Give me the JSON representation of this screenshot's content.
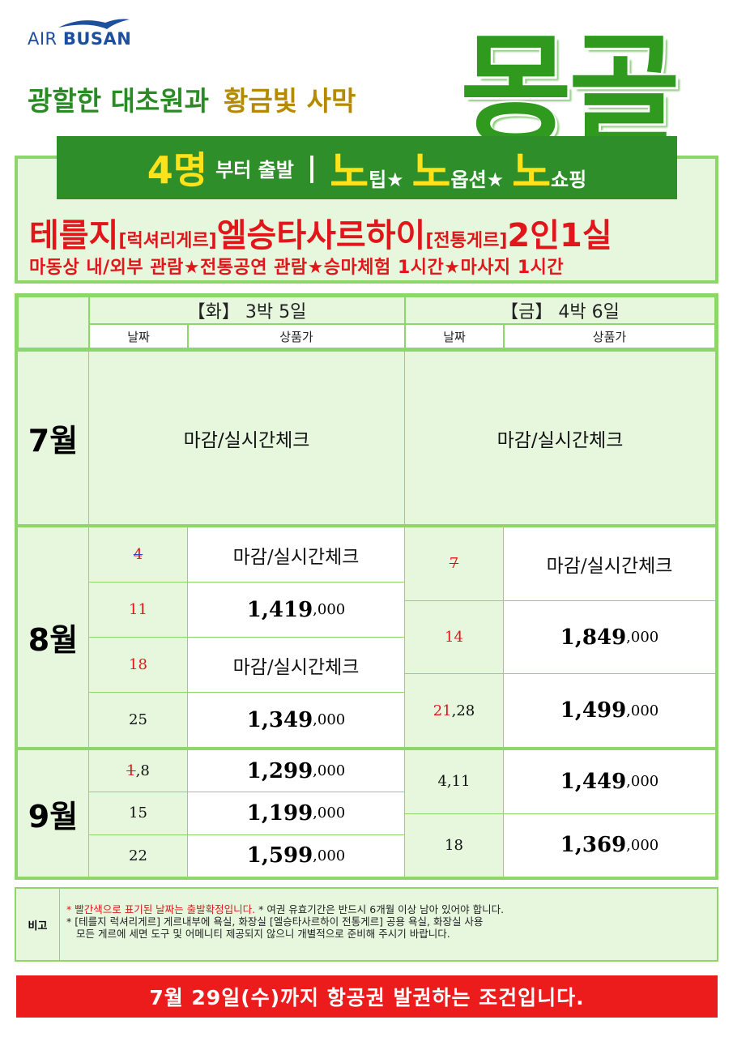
{
  "logo": {
    "air": "AIR",
    "busan": "BUSAN"
  },
  "headline": {
    "green": "광할한 대초원과",
    "gold": "황금빛 사막",
    "title": "몽골"
  },
  "banner": {
    "lead": "4명",
    "lead_suffix": "부터 출발",
    "divider": "|",
    "features": [
      {
        "big": "노",
        "small": "팁★"
      },
      {
        "big": "노",
        "small": "옵션★"
      },
      {
        "big": "노",
        "small": "쇼핑"
      }
    ]
  },
  "hotel_line": [
    "테를지",
    "[럭셔리게르]",
    "엘승타사르하이",
    "[전통게르]",
    "2인1실"
  ],
  "features_line": "마동상 내/외부 관람★전통공연 관람★승마체험 1시간★마사지 1시간",
  "table": {
    "header": {
      "tue": "【화】 3박 5일",
      "fri": "【금】 4박 6일",
      "sub": [
        "날짜",
        "상품가",
        "날짜",
        "상품가"
      ]
    },
    "months": [
      {
        "label": "7월",
        "tue": [
          {
            "note": "마감/실시간체크"
          }
        ],
        "fri": [
          {
            "note": "마감/실시간체크"
          }
        ]
      },
      {
        "label": "8월",
        "tue": [
          {
            "date": [
              {
                "t": "4",
                "s": "struck"
              }
            ],
            "note": "마감/실시간체크"
          },
          {
            "date": [
              {
                "t": "11",
                "s": "red"
              }
            ],
            "price": [
              "1,419",
              ",000"
            ]
          },
          {
            "date": [
              {
                "t": "18",
                "s": "red"
              }
            ],
            "note": "마감/실시간체크"
          },
          {
            "date": [
              {
                "t": "25",
                "s": "plain"
              }
            ],
            "price": [
              "1,349",
              ",000"
            ]
          }
        ],
        "fri": [
          {
            "date": [
              {
                "t": "7",
                "s": "struck"
              }
            ],
            "note": "마감/실시간체크"
          },
          {
            "date": [
              {
                "t": "14",
                "s": "red"
              }
            ],
            "price": [
              "1,849",
              ",000"
            ]
          },
          {
            "date": [
              {
                "t": "21",
                "s": "red"
              },
              {
                "t": ",28",
                "s": "plain"
              }
            ],
            "price": [
              "1,499",
              ",000"
            ]
          }
        ]
      },
      {
        "label": "9월",
        "tue": [
          {
            "date": [
              {
                "t": "1",
                "s": "struck"
              },
              {
                "t": ",8",
                "s": "plain"
              }
            ],
            "price": [
              "1,299",
              ",000"
            ]
          },
          {
            "date": [
              {
                "t": "15",
                "s": "plain"
              }
            ],
            "price": [
              "1,199",
              ",000"
            ]
          },
          {
            "date": [
              {
                "t": "22",
                "s": "plain"
              }
            ],
            "price": [
              "1,599",
              ",000"
            ]
          }
        ],
        "fri": [
          {
            "date": [
              {
                "t": "4,11",
                "s": "plain"
              }
            ],
            "price": [
              "1,449",
              ",000"
            ]
          },
          {
            "date": [
              {
                "t": "18",
                "s": "plain"
              }
            ],
            "price": [
              "1,369",
              ",000"
            ]
          }
        ]
      }
    ]
  },
  "notes": {
    "label": "비고",
    "line1_red": "* 빨간색으로 표기된 날짜는 출발확정입니다.",
    "line1_rest": "* 여권 유효기간은 반드시 6개월 이상 남아 있어야 합니다.",
    "line2": "* [테를지 럭셔리게르] 게르내부에 욕실, 화장실  [엘승타사르하이 전통게르] 공용 욕실, 화장실 사용",
    "line3": "모든 게르에 세면 도구 및 어메니티 제공되지 않으니 개별적으로 준비해 주시기 바랍니다."
  },
  "footer": "7월 29일(수)까지 항공권 발권하는 조건입니다."
}
